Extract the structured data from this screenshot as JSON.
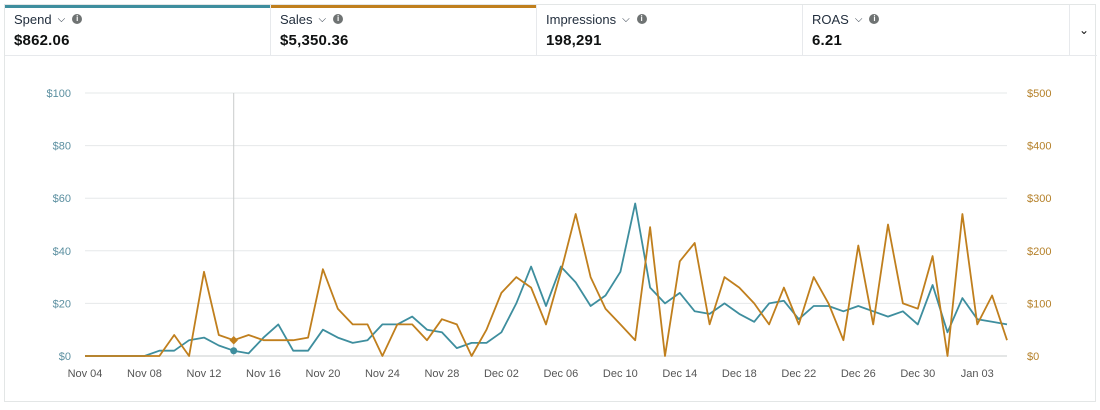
{
  "metrics": [
    {
      "label": "Spend",
      "value": "$862.06",
      "color": "#3e8e9e"
    },
    {
      "label": "Sales",
      "value": "$5,350.36",
      "color": "#c07f1d"
    },
    {
      "label": "Impressions",
      "value": "198,291",
      "color": ""
    },
    {
      "label": "ROAS",
      "value": "6.21",
      "color": ""
    }
  ],
  "icons": {
    "dropdown": "chevron-down-icon",
    "info": "info-icon",
    "expand": "chevron-down-icon"
  },
  "chart_data": {
    "type": "line",
    "x_labels": [
      "Nov 04",
      "Nov 08",
      "Nov 12",
      "Nov 16",
      "Nov 20",
      "Nov 24",
      "Nov 28",
      "Dec 02",
      "Dec 06",
      "Dec 10",
      "Dec 14",
      "Dec 18",
      "Dec 22",
      "Dec 26",
      "Dec 30",
      "Jan 03"
    ],
    "y_left": {
      "ticks": [
        "$0",
        "$20",
        "$40",
        "$60",
        "$80",
        "$100"
      ],
      "range": [
        0,
        100
      ]
    },
    "y_right": {
      "ticks": [
        "$0",
        "$100",
        "$200",
        "$300",
        "$400",
        "$500"
      ],
      "range": [
        0,
        500
      ]
    },
    "grid": true,
    "hover_day_index": 10,
    "series": [
      {
        "axis": "left",
        "color": "#3e8e9e",
        "values": [
          0,
          0,
          0,
          0,
          0,
          2,
          2,
          6,
          7,
          4,
          2,
          1,
          7,
          12,
          2,
          2,
          10,
          7,
          5,
          6,
          12,
          12,
          15,
          10,
          9,
          3,
          5,
          5,
          9,
          20,
          34,
          19,
          34,
          28,
          19,
          23,
          32,
          58,
          26,
          20,
          24,
          17,
          16,
          20,
          16,
          13,
          20,
          21,
          14,
          19,
          19,
          17,
          19,
          17,
          15,
          17,
          12,
          27,
          9,
          22,
          14,
          13,
          12
        ]
      },
      {
        "axis": "right",
        "color": "#c07f1d",
        "values": [
          0,
          0,
          0,
          0,
          0,
          0,
          40,
          0,
          160,
          40,
          30,
          40,
          30,
          30,
          30,
          35,
          165,
          90,
          60,
          60,
          0,
          60,
          60,
          30,
          70,
          60,
          0,
          50,
          120,
          150,
          130,
          60,
          160,
          270,
          150,
          90,
          60,
          30,
          245,
          0,
          180,
          215,
          60,
          150,
          130,
          100,
          60,
          130,
          60,
          150,
          100,
          30,
          210,
          60,
          250,
          100,
          90,
          190,
          0,
          270,
          60,
          115,
          30
        ]
      }
    ]
  }
}
